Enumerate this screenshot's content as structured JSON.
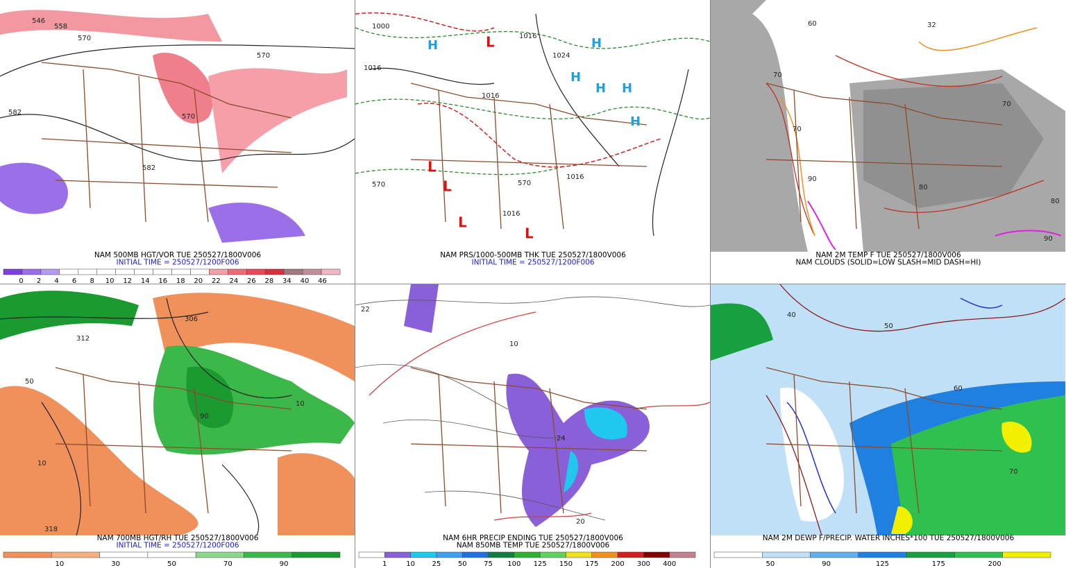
{
  "panels": [
    {
      "captions": [
        "NAM 500MB HGT/VOR TUE 250527/1800V006",
        "INITIAL TIME = 250527/1200F006"
      ],
      "map_labels": [
        "546",
        "558",
        "570",
        "570",
        "582",
        "582",
        "570"
      ],
      "legend": {
        "labels": [
          "0",
          "2",
          "4",
          "6",
          "8",
          "10",
          "12",
          "14",
          "16",
          "18",
          "20",
          "22",
          "24",
          "26",
          "28",
          "34",
          "40",
          "46"
        ],
        "colors": [
          "#7f3fe0",
          "#9a6fe8",
          "#b49af0",
          "#ffffff",
          "#ffffff",
          "#ffffff",
          "#ffffff",
          "#ffffff",
          "#ffffff",
          "#ffffff",
          "#ffffff",
          "#f5a0a8",
          "#ee6c78",
          "#e84858",
          "#d83040",
          "#a07880",
          "#c09098",
          "#f0b8c0"
        ]
      }
    },
    {
      "captions": [
        "NAM PRS/1000-500MB THK TUE 250527/1800V006",
        "INITIAL TIME = 250527/1200F006"
      ],
      "map_labels": [
        "1000",
        "1016",
        "1016",
        "1024",
        "1016",
        "1016",
        "1016",
        "570",
        "570",
        "H",
        "H",
        "H",
        "H",
        "H",
        "H",
        "L",
        "L",
        "L",
        "L",
        "L"
      ]
    },
    {
      "captions": [
        "NAM 2M TEMP F TUE 250527/1800V006",
        "NAM CLOUDS (SOLID=LOW SLASH=MID DASH=HI)"
      ],
      "map_labels": [
        "60",
        "70",
        "70",
        "70",
        "80",
        "80",
        "90",
        "90",
        "32"
      ]
    },
    {
      "captions": [
        "NAM 700MB HGT/RH TUE 250527/1800V006",
        "INITIAL TIME = 250527/1200F006"
      ],
      "map_labels": [
        "312",
        "306",
        "50",
        "90",
        "10",
        "10",
        "318"
      ],
      "legend": {
        "labels": [
          "10",
          "30",
          "50",
          "70",
          "90"
        ],
        "colors": [
          "#f0905a",
          "#f6b080",
          "#ffffff",
          "#ffffff",
          "#8ad88a",
          "#3cb84a",
          "#1a9a30"
        ]
      }
    },
    {
      "captions": [
        "NAM 6HR PRECIP ENDING TUE 250527/1800V006",
        "NAM 850MB TEMP TUE 250527/1800V006"
      ],
      "map_labels": [
        "22",
        "10",
        "20",
        "24"
      ],
      "legend": {
        "labels": [
          "1",
          "10",
          "25",
          "50",
          "75",
          "100",
          "125",
          "150",
          "175",
          "200",
          "300",
          "400"
        ],
        "colors": [
          "#ffffff",
          "#8a60d8",
          "#20c8f0",
          "#40a0f0",
          "#2070e0",
          "#108040",
          "#30b030",
          "#60d060",
          "#f0e020",
          "#f09020",
          "#d02020",
          "#800000",
          "#c08090"
        ]
      }
    },
    {
      "captions": [
        "NAM 2M DEWP F/PRECIP. WATER INCHES*100 TUE 250527/1800V006"
      ],
      "map_labels": [
        "40",
        "50",
        "60",
        "70"
      ],
      "legend": {
        "labels": [
          "50",
          "90",
          "125",
          "175",
          "200"
        ],
        "colors": [
          "#ffffff",
          "#c0e0f8",
          "#60b0f0",
          "#2080e0",
          "#18a040",
          "#30c050",
          "#f0f000"
        ]
      }
    }
  ]
}
